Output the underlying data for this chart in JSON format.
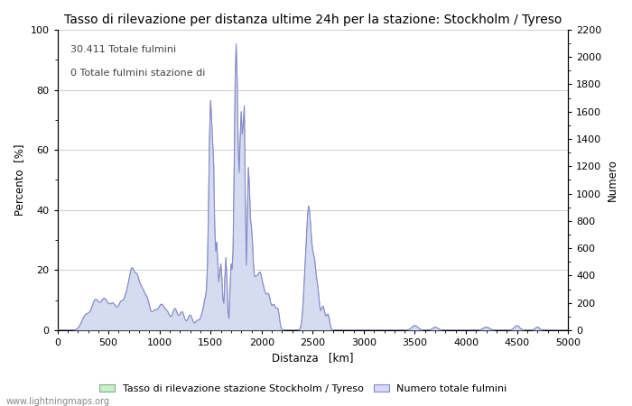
{
  "title": "Tasso di rilevazione per distanza ultime 24h per la stazione: Stockholm / Tyreso",
  "xlabel": "Distanza   [km]",
  "ylabel_left": "Percento  [%]",
  "ylabel_right": "Numero",
  "annotation1": "30.411 Totale fulmini",
  "annotation2": "0 Totale fulmini stazione di",
  "legend1": "Tasso di rilevazione stazione Stockholm / Tyreso",
  "legend2": "Numero totale fulmini",
  "website": "www.lightningmaps.org",
  "xlim": [
    0,
    5000
  ],
  "ylim_left": [
    0,
    100
  ],
  "ylim_right": [
    0,
    2200
  ],
  "color_green": "#c8f0c8",
  "color_blue": "#d8d8f8",
  "color_line_blue": "#8888cc",
  "color_line_green": "#88aa88",
  "grid_color": "#bbbbbb",
  "bg_color": "#ffffff",
  "title_fontsize": 10,
  "label_fontsize": 8.5,
  "tick_fontsize": 8
}
